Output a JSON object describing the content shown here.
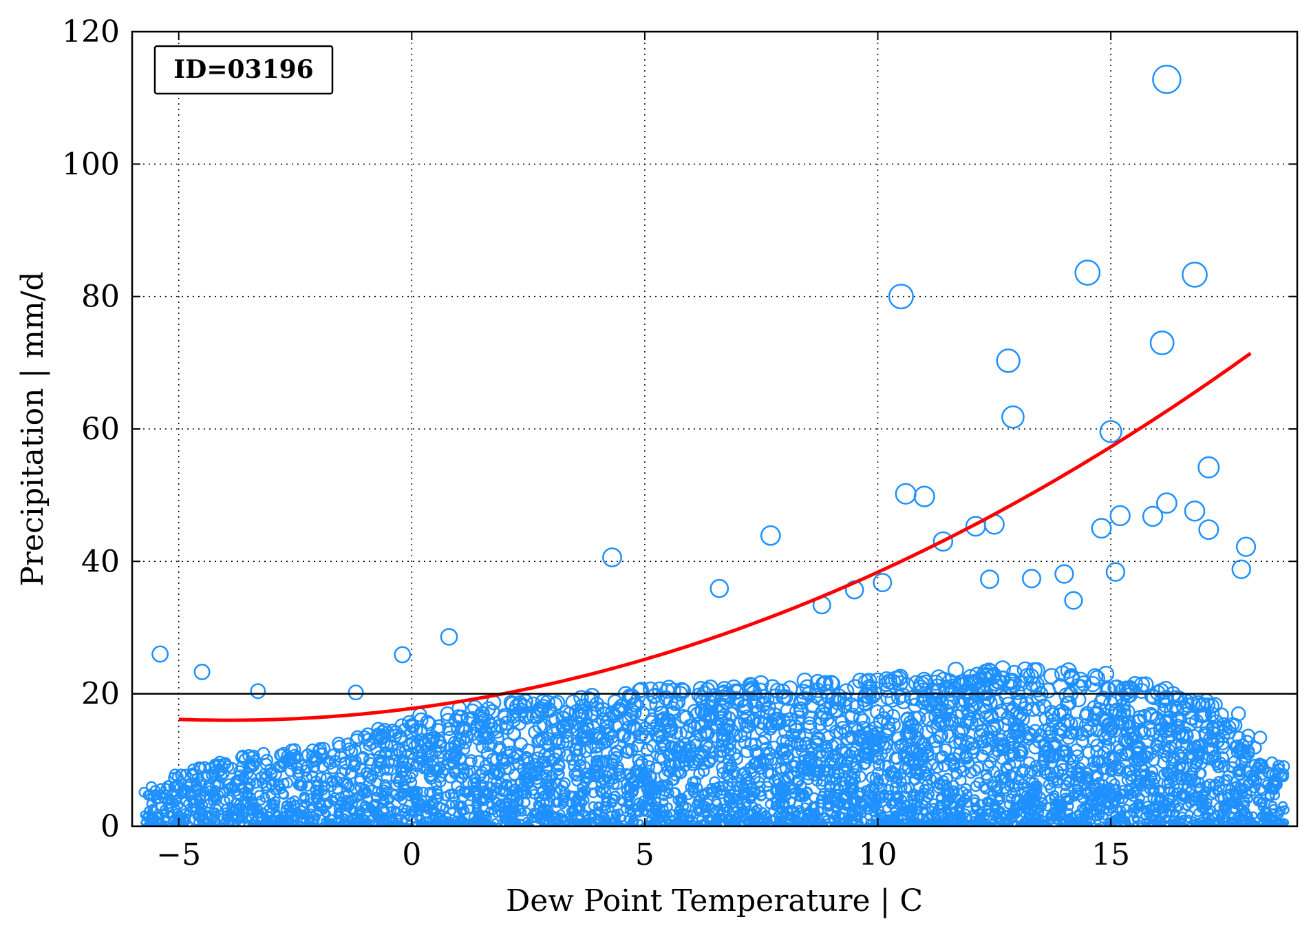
{
  "chart_data": {
    "type": "scatter",
    "title": "",
    "annotation": "ID=03196",
    "xlabel": "Dew Point Temperature | C",
    "ylabel": "Precipitation | mm/d",
    "xlim": [
      -6,
      19
    ],
    "ylim": [
      0,
      120
    ],
    "xticks": [
      -5,
      0,
      5,
      10,
      15
    ],
    "xtick_labels": [
      "−5",
      "0",
      "5",
      "10",
      "15"
    ],
    "yticks": [
      0,
      20,
      40,
      60,
      80,
      100,
      120
    ],
    "ytick_labels": [
      "0",
      "20",
      "40",
      "60",
      "80",
      "100",
      "120"
    ],
    "grid": true,
    "reference_line": {
      "y": 20,
      "color": "#000000"
    },
    "marker_color": "#1e90ff",
    "fit_color": "#ff0000",
    "fit_curve": {
      "x": [
        -5,
        -4,
        -3,
        -2,
        -1,
        0,
        1,
        2,
        3,
        4,
        5,
        6,
        7,
        8,
        9,
        10,
        11,
        12,
        13,
        14,
        15,
        16,
        17,
        18
      ],
      "y": [
        17.0,
        16.7,
        16.6,
        16.7,
        17.0,
        17.5,
        18.3,
        19.3,
        20.5,
        22.1,
        24.0,
        26.3,
        28.9,
        31.9,
        35.2,
        38.9,
        42.9,
        47.3,
        51.8,
        56.6,
        57.0,
        61.5,
        65.0,
        68.5
      ]
    },
    "outliers": {
      "x": [
        16.2,
        14.5,
        16.8,
        10.5,
        16.1,
        12.8,
        12.9,
        15.0,
        17.1,
        10.6,
        11.0,
        16.8,
        15.9,
        7.7,
        4.3,
        14.8,
        12.5,
        17.9,
        16.2,
        14.0,
        11.4,
        12.1,
        15.2,
        17.1,
        6.6,
        8.8,
        9.5,
        10.1,
        12.4,
        13.3,
        17.8,
        14.2,
        15.1,
        0.8,
        -5.4,
        -0.2,
        -4.5,
        -3.3,
        -1.2
      ],
      "y": [
        112.8,
        83.6,
        83.3,
        80.0,
        73.0,
        70.3,
        61.8,
        59.6,
        54.2,
        50.2,
        49.8,
        47.6,
        46.8,
        43.9,
        40.6,
        45.0,
        45.6,
        42.2,
        48.8,
        38.1,
        43.0,
        45.3,
        46.9,
        44.8,
        35.9,
        33.4,
        35.7,
        36.8,
        37.3,
        37.4,
        38.8,
        34.1,
        38.4,
        28.6,
        26.0,
        25.9,
        23.3,
        20.4,
        20.2
      ]
    },
    "bulk_density": {
      "x_bins": [
        -5.5,
        -5,
        -4.5,
        -4,
        -3.5,
        -3,
        -2.5,
        -2,
        -1.5,
        -1,
        -0.5,
        0,
        0.5,
        1,
        1.5,
        2,
        2.5,
        3,
        3.5,
        4,
        4.5,
        5,
        5.5,
        6,
        6.5,
        7,
        7.5,
        8,
        8.5,
        9,
        9.5,
        10,
        10.5,
        11,
        11.5,
        12,
        12.5,
        13,
        13.5,
        14,
        14.5,
        15,
        15.5,
        16,
        16.5,
        17,
        17.5,
        18,
        18.5
      ],
      "max_typical_y": [
        6,
        8,
        9,
        10,
        11,
        11,
        12,
        12,
        13,
        14,
        16,
        17,
        17,
        18,
        18,
        19,
        19,
        19,
        20,
        20,
        20,
        21,
        21,
        21,
        21,
        21,
        22,
        22,
        22,
        22,
        22,
        23,
        23,
        23,
        24,
        24,
        24,
        24,
        24,
        24,
        23,
        23,
        22,
        21,
        20,
        19,
        17,
        14,
        10
      ]
    }
  }
}
